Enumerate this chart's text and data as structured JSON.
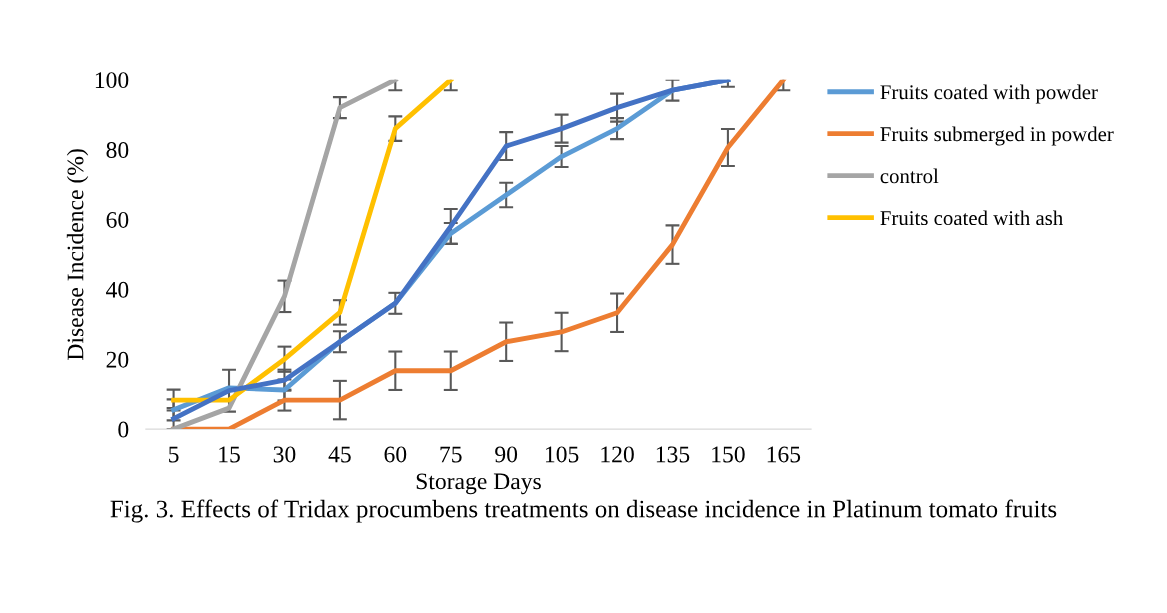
{
  "chart_data": {
    "type": "line",
    "xlabel": "Storage Days",
    "ylabel": "Disease Incidence (%)",
    "categories": [
      "5",
      "15",
      "30",
      "45",
      "60",
      "75",
      "90",
      "105",
      "120",
      "135",
      "150",
      "165"
    ],
    "ylim": [
      0,
      100
    ],
    "yticks": [
      0,
      20,
      40,
      60,
      80,
      100
    ],
    "grid": false,
    "legend": "right",
    "marker": "none",
    "line_style": "solid",
    "series": [
      {
        "name": "Fruits coated with powder",
        "color": "#5b9bd5",
        "values": [
          5.5,
          11.8,
          11.2,
          25,
          36,
          56,
          67,
          78,
          86,
          97,
          100,
          null
        ],
        "errors": [
          3,
          null,
          3,
          null,
          null,
          3,
          3.5,
          3,
          3,
          null,
          null,
          null
        ]
      },
      {
        "name": "Fruits submerged in powder",
        "color": "#ed7d31",
        "values": [
          0,
          0,
          8.3,
          8.3,
          16.7,
          16.7,
          25,
          27.8,
          33.3,
          52.8,
          80.6,
          100
        ],
        "errors": [
          null,
          null,
          3,
          5.5,
          5.5,
          5.5,
          5.5,
          5.5,
          5.5,
          5.5,
          5.3,
          3
        ]
      },
      {
        "name": "control",
        "color": "#a5a5a5",
        "values": [
          0,
          6,
          38,
          92,
          100,
          null,
          null,
          null,
          null,
          null,
          null,
          null
        ],
        "errors": [
          null,
          null,
          4.5,
          3,
          3,
          null,
          null,
          null,
          null,
          null,
          null,
          null
        ]
      },
      {
        "name": "Fruits coated with ash",
        "color": "#ffc000",
        "values": [
          8.3,
          8.3,
          20,
          33.4,
          86,
          100,
          null,
          null,
          null,
          null,
          null,
          null
        ],
        "errors": [
          3,
          null,
          3.6,
          3.5,
          3.5,
          3,
          null,
          null,
          null,
          null,
          null,
          null
        ]
      },
      {
        "color": "#4472c4",
        "values": [
          3,
          11,
          14,
          25,
          36,
          58,
          81,
          86,
          92,
          97,
          100,
          null
        ],
        "errors": [
          3,
          6,
          3,
          3,
          3,
          5,
          4,
          4,
          4,
          3,
          2,
          null
        ]
      }
    ],
    "annotations": [
      "Fig. 3. Effects of Tridax procumbens treatments on disease incidence in Platinum tomato fruits"
    ]
  }
}
